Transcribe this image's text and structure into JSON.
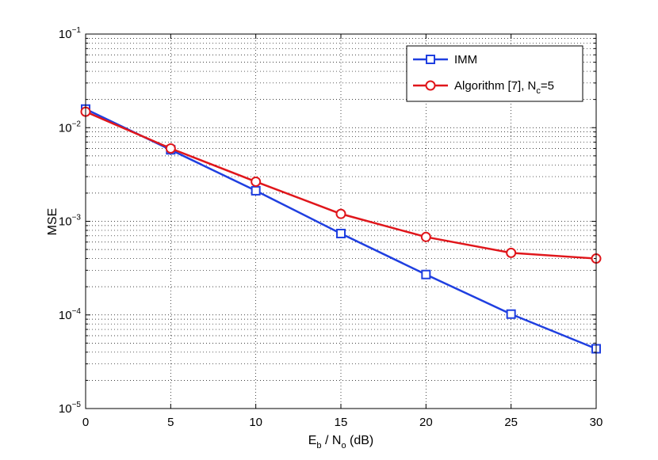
{
  "chart_data": {
    "type": "line",
    "title": "",
    "xlabel": {
      "parts": [
        "E",
        "b",
        " / N",
        "o",
        " (dB)"
      ]
    },
    "ylabel": "MSE",
    "x": [
      0,
      5,
      10,
      15,
      20,
      25,
      30
    ],
    "xlim": [
      0,
      30
    ],
    "x_ticks": [
      "0",
      "5",
      "10",
      "15",
      "20",
      "25",
      "30"
    ],
    "ylim": [
      1e-05,
      0.1
    ],
    "yscale": "log",
    "y_ticks": [
      {
        "base": "10",
        "exp": "−1"
      },
      {
        "base": "10",
        "exp": "−2"
      },
      {
        "base": "10",
        "exp": "−3"
      },
      {
        "base": "10",
        "exp": "−4"
      },
      {
        "base": "10",
        "exp": "−5"
      }
    ],
    "grid": true,
    "legend_position": "top-right",
    "series": [
      {
        "name": "IMM",
        "legend_parts": [
          "IMM"
        ],
        "color": "#1f3fe0",
        "marker": "square",
        "values": [
          0.0158,
          0.0058,
          0.00212,
          0.00074,
          0.00027,
          0.000102,
          4.35e-05
        ]
      },
      {
        "name": "Algorithm [7], Nc=5",
        "legend_parts": [
          "Algorithm [7], N",
          "c",
          "=5"
        ],
        "color": "#e0161b",
        "marker": "circle",
        "values": [
          0.0148,
          0.006,
          0.00265,
          0.0012,
          0.00068,
          0.00046,
          0.0004
        ]
      }
    ]
  }
}
